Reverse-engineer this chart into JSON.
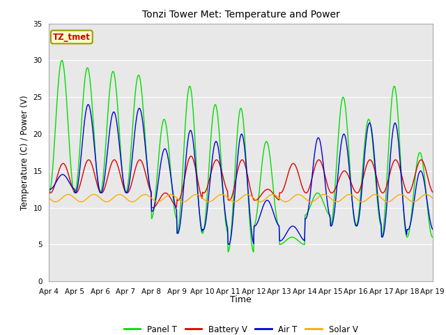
{
  "title": "Tonzi Tower Met: Temperature and Power",
  "xlabel": "Time",
  "ylabel": "Temperature (C) / Power (V)",
  "ylim": [
    0,
    35
  ],
  "yticks": [
    0,
    5,
    10,
    15,
    20,
    25,
    30,
    35
  ],
  "plot_bg_color": "#e8e8e8",
  "legend_entries": [
    "Panel T",
    "Battery V",
    "Air T",
    "Solar V"
  ],
  "legend_colors": [
    "#00dd00",
    "#dd0000",
    "#0000dd",
    "#ffaa00"
  ],
  "annotation_text": "TZ_tmet",
  "annotation_bg": "#ffffcc",
  "annotation_border": "#999900",
  "annotation_text_color": "#cc0000",
  "x_tick_labels": [
    "Apr 4",
    "Apr 5",
    "Apr 6",
    "Apr 7",
    "Apr 8",
    "Apr 9",
    "Apr 10",
    "Apr 11",
    "Apr 12",
    "Apr 13",
    "Apr 14",
    "Apr 15",
    "Apr 16",
    "Apr 17",
    "Apr 18",
    "Apr 19"
  ],
  "n_days": 16,
  "line_width": 1.0
}
